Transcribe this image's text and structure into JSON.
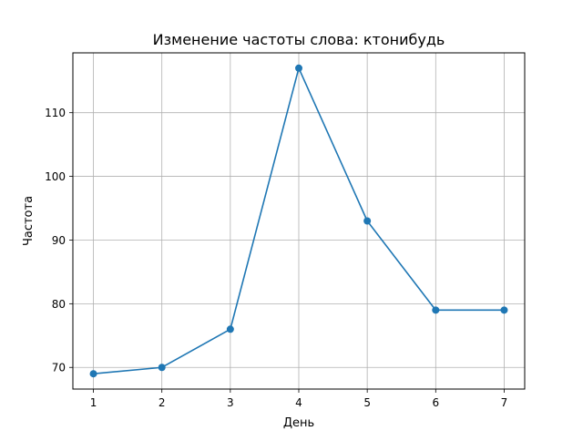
{
  "chart_data": {
    "type": "line",
    "title": "Изменение частоты слова: ктонибудь",
    "xlabel": "День",
    "ylabel": "Частота",
    "x": [
      1,
      2,
      3,
      4,
      5,
      6,
      7
    ],
    "series": [
      {
        "values": [
          69,
          70,
          76,
          117,
          93,
          79,
          79
        ],
        "color": "#1f77b4",
        "marker": "circle"
      }
    ],
    "xticks": [
      1,
      2,
      3,
      4,
      5,
      6,
      7
    ],
    "yticks": [
      70,
      80,
      90,
      100,
      110
    ],
    "xlim": [
      0.7,
      7.3
    ],
    "ylim": [
      66.6,
      119.4
    ],
    "grid": true
  }
}
